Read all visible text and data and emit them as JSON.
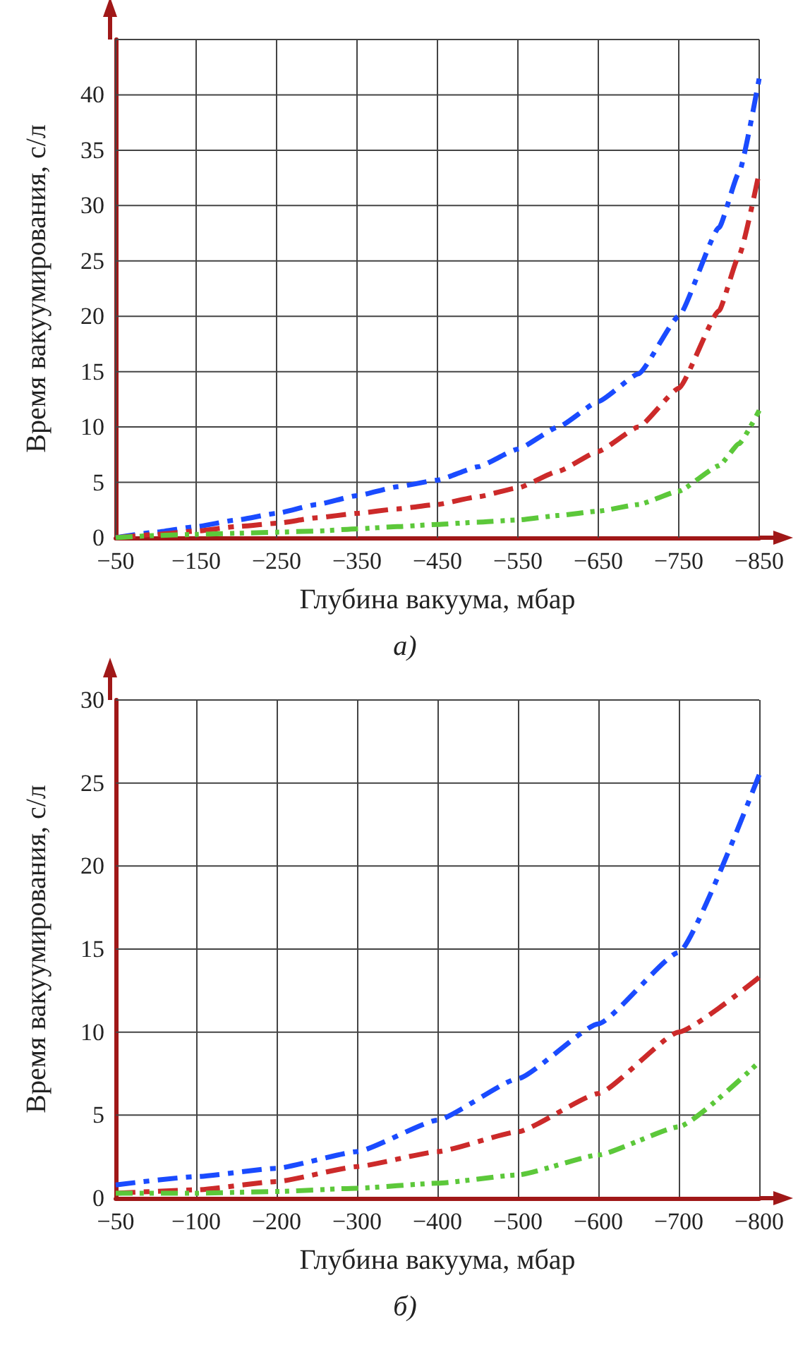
{
  "chart_data": [
    {
      "type": "line",
      "xlabel": "Глубина вакуума, мбар",
      "ylabel": "Время вакуумирования, с/л",
      "annotations": [
        "а)"
      ],
      "x": [
        -50,
        -100,
        -150,
        -200,
        -250,
        -300,
        -350,
        -400,
        -450,
        -500,
        -550,
        -600,
        -650,
        -700,
        -750,
        -800,
        -825,
        -850
      ],
      "series": [
        {
          "color": "#1a4bff",
          "line_style": "dashed",
          "values": [
            0,
            0.5,
            1.0,
            1.6,
            2.2,
            3.0,
            3.8,
            4.6,
            5.2,
            6.4,
            8.0,
            10.0,
            12.3,
            14.8,
            20,
            28,
            33,
            41.5
          ]
        },
        {
          "color": "#cc2a2a",
          "line_style": "dashed",
          "values": [
            0,
            0.3,
            0.6,
            1.0,
            1.3,
            1.8,
            2.2,
            2.6,
            3.0,
            3.7,
            4.5,
            6.0,
            7.8,
            10,
            13.5,
            20.5,
            25.5,
            33
          ]
        },
        {
          "color": "#5cc83a",
          "line_style": "dotted",
          "values": [
            0,
            0.2,
            0.3,
            0.4,
            0.5,
            0.6,
            0.8,
            1.0,
            1.2,
            1.4,
            1.6,
            2.0,
            2.4,
            3.0,
            4.2,
            6.5,
            8.5,
            11.5
          ]
        }
      ],
      "xlim": [
        -50,
        -850
      ],
      "xticks": [
        -50,
        -150,
        -250,
        -350,
        -450,
        -550,
        -650,
        -750,
        -850
      ],
      "ylim": [
        0,
        45
      ],
      "yticks": [
        0,
        5,
        10,
        15,
        20,
        25,
        30,
        35,
        40,
        {
          "value": 45,
          "label": null
        }
      ],
      "grid": true,
      "marker": "none"
    },
    {
      "type": "line",
      "xlabel": "Глубина вакуума, мбар",
      "ylabel": "Время вакуумирования, с/л",
      "annotations": [
        "б)"
      ],
      "categories": [
        "−50",
        "−100",
        "−200",
        "−300",
        "−400",
        "−500",
        "−600",
        "−700",
        "−800"
      ],
      "series": [
        {
          "color": "#1a4bff",
          "line_style": "dashed",
          "values": [
            0.8,
            1.3,
            1.8,
            2.8,
            4.7,
            7.2,
            10.5,
            14.8,
            25.5
          ]
        },
        {
          "color": "#cc2a2a",
          "line_style": "dashed",
          "values": [
            0.3,
            0.5,
            1.0,
            1.9,
            2.8,
            4.0,
            6.3,
            10.0,
            13.3
          ]
        },
        {
          "color": "#5cc83a",
          "line_style": "dotted",
          "values": [
            0.3,
            0.3,
            0.4,
            0.6,
            0.9,
            1.4,
            2.6,
            4.3,
            8.2
          ]
        }
      ],
      "ylim": [
        0,
        30
      ],
      "yticks": [
        0,
        5,
        10,
        15,
        20,
        25,
        30
      ],
      "grid": true,
      "marker": "none"
    }
  ]
}
